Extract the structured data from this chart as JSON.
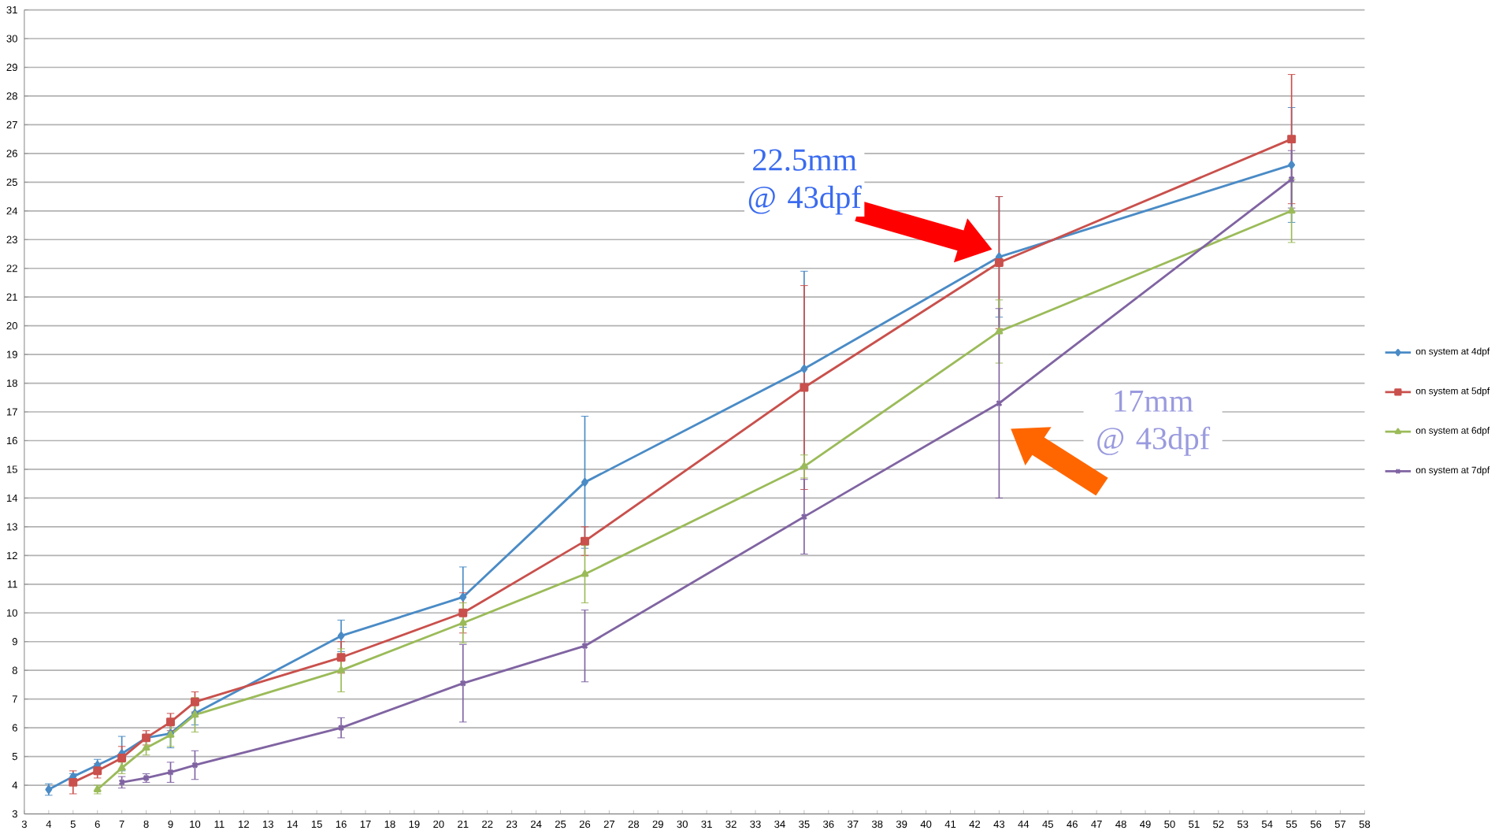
{
  "chart_data": {
    "type": "line",
    "xlim": [
      3,
      58
    ],
    "xticks": [
      3,
      4,
      5,
      6,
      7,
      8,
      9,
      10,
      11,
      12,
      13,
      14,
      15,
      16,
      17,
      18,
      19,
      20,
      21,
      22,
      23,
      24,
      25,
      26,
      27,
      28,
      29,
      30,
      31,
      32,
      33,
      34,
      35,
      36,
      37,
      38,
      39,
      40,
      41,
      42,
      43,
      44,
      45,
      46,
      47,
      48,
      49,
      50,
      51,
      52,
      53,
      54,
      55,
      56,
      57,
      58
    ],
    "ylim": [
      3,
      31
    ],
    "yticks": [
      3,
      4,
      5,
      6,
      7,
      8,
      9,
      10,
      11,
      12,
      13,
      14,
      15,
      16,
      17,
      18,
      19,
      20,
      21,
      22,
      23,
      24,
      25,
      26,
      27,
      28,
      29,
      30,
      31
    ],
    "grid": "y",
    "legend": "right",
    "line_style": "solid",
    "series": [
      {
        "name": "on system at 4dpf",
        "color": "#4a8bc6",
        "marker": "diamond",
        "x": [
          4,
          5,
          6,
          7,
          8,
          9,
          10,
          16,
          21,
          26,
          35,
          43,
          55
        ],
        "values": [
          3.85,
          4.3,
          4.7,
          5.1,
          5.65,
          5.8,
          6.5,
          9.2,
          10.55,
          14.55,
          18.5,
          22.4,
          25.6
        ],
        "errors": [
          0.2,
          0.1,
          0.2,
          0.6,
          0.1,
          0.5,
          0.4,
          0.55,
          1.05,
          2.3,
          3.4,
          2.1,
          2.0
        ]
      },
      {
        "name": "on system at 5dpf",
        "color": "#c9504c",
        "marker": "square",
        "x": [
          5,
          6,
          7,
          8,
          9,
          10,
          16,
          21,
          26,
          35,
          43,
          55
        ],
        "values": [
          4.1,
          4.5,
          4.95,
          5.65,
          6.2,
          6.9,
          8.45,
          10.0,
          12.5,
          17.85,
          22.2,
          26.5
        ],
        "errors": [
          0.4,
          0.25,
          0.4,
          0.25,
          0.3,
          0.35,
          0.55,
          0.7,
          0.5,
          3.55,
          2.3,
          2.25
        ]
      },
      {
        "name": "on system at 6dpf",
        "color": "#9bbb59",
        "marker": "triangle",
        "x": [
          6,
          7,
          8,
          9,
          10,
          16,
          21,
          26,
          35,
          43,
          55
        ],
        "values": [
          3.85,
          4.6,
          5.3,
          5.75,
          6.45,
          8.0,
          9.65,
          11.35,
          15.1,
          19.8,
          24.0
        ],
        "errors": [
          0.15,
          0.2,
          0.25,
          0.4,
          0.6,
          0.75,
          0.7,
          1.0,
          0.4,
          1.1,
          1.1
        ]
      },
      {
        "name": "on system at 7dpf",
        "color": "#8064a2",
        "marker": "cross",
        "x": [
          7,
          8,
          9,
          10,
          16,
          21,
          26,
          35,
          43,
          55
        ],
        "values": [
          4.1,
          4.25,
          4.45,
          4.7,
          6.0,
          7.55,
          8.85,
          13.35,
          17.3,
          25.1
        ],
        "errors": [
          0.2,
          0.15,
          0.35,
          0.5,
          0.35,
          1.35,
          1.25,
          1.3,
          3.3,
          1.0
        ]
      }
    ],
    "annotations": [
      "22.5mm @ 43dpf",
      "17mm @ 43dpf"
    ]
  }
}
